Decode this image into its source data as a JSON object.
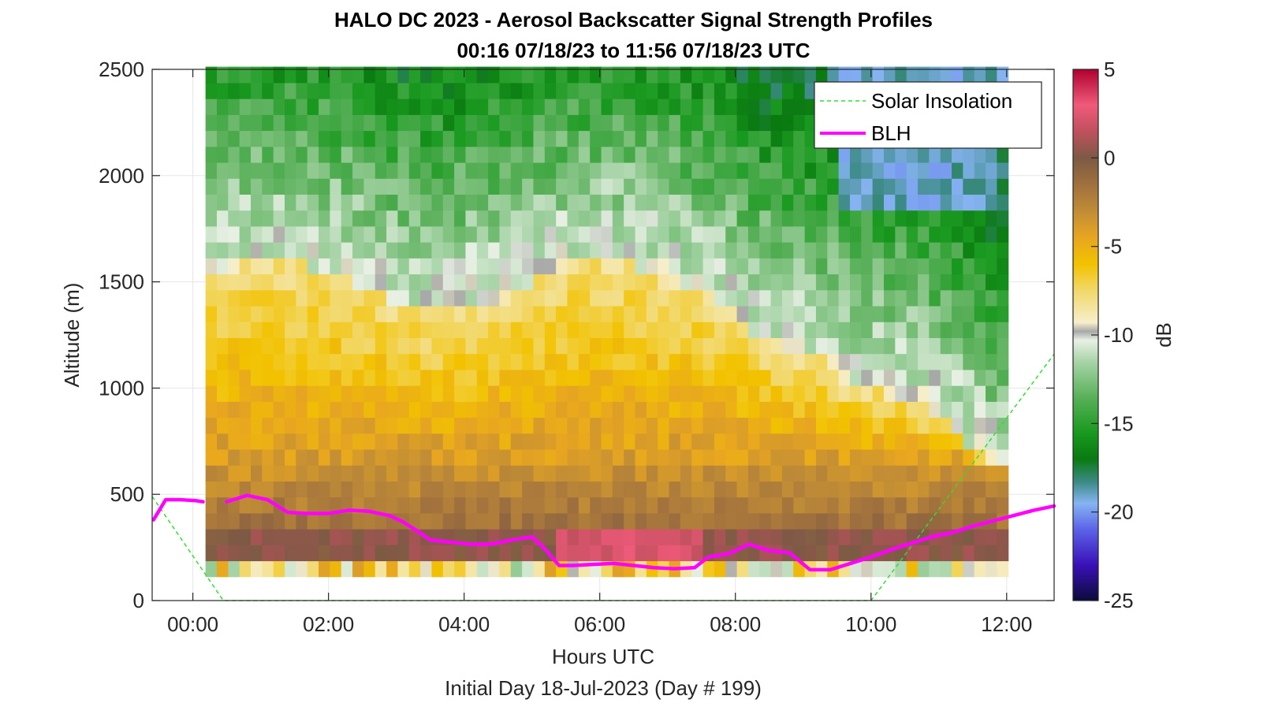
{
  "chart_data": {
    "type": "heatmap",
    "title": "HALO DC 2023 - Aerosol Backscatter Signal Strength Profiles",
    "subtitle": "00:16 07/18/23 to 11:56 07/18/23  UTC",
    "xlabel": "Hours UTC",
    "xlabel2": "Initial Day 18-Jul-2023 (Day # 199)",
    "ylabel": "Altitude (m)",
    "colorbar_label": "dB",
    "xlim": [
      -0.6,
      12.7
    ],
    "ylim": [
      0,
      2500
    ],
    "clim": [
      -25,
      5
    ],
    "grid": true,
    "legend_position": "top-right",
    "x_ticks": [
      0,
      2,
      4,
      6,
      8,
      10,
      12
    ],
    "x_tick_labels": [
      "00:00",
      "02:00",
      "04:00",
      "06:00",
      "08:00",
      "10:00",
      "12:00"
    ],
    "y_ticks": [
      0,
      500,
      1000,
      1500,
      2000,
      2500
    ],
    "y_tick_labels": [
      "0",
      "500",
      "1000",
      "1500",
      "2000",
      "2500"
    ],
    "colorbar_ticks": [
      5,
      0,
      -5,
      -10,
      -15,
      -20,
      -25
    ],
    "colorbar_tick_labels": [
      "5",
      "0",
      "-5",
      "-10",
      "-15",
      "-20",
      "-25"
    ],
    "colormap": [
      {
        "value": -25,
        "color": "#0b0b3a"
      },
      {
        "value": -23,
        "color": "#3a10b8"
      },
      {
        "value": -21,
        "color": "#5a62e8"
      },
      {
        "value": -19.5,
        "color": "#86b4f2"
      },
      {
        "value": -18.3,
        "color": "#3c8a86"
      },
      {
        "value": -17,
        "color": "#0a7a10"
      },
      {
        "value": -15.5,
        "color": "#1a9a20"
      },
      {
        "value": -13.5,
        "color": "#5ab05a"
      },
      {
        "value": -11.5,
        "color": "#a8d4a8"
      },
      {
        "value": -10.3,
        "color": "#e8f0e4"
      },
      {
        "value": -9.8,
        "color": "#a8a8a8"
      },
      {
        "value": -9.3,
        "color": "#f6eecc"
      },
      {
        "value": -7.5,
        "color": "#f2d86a"
      },
      {
        "value": -6,
        "color": "#f2c200"
      },
      {
        "value": -4.5,
        "color": "#e8a620"
      },
      {
        "value": -3,
        "color": "#c08c36"
      },
      {
        "value": -1.5,
        "color": "#a0703e"
      },
      {
        "value": 0,
        "color": "#7c5a44"
      },
      {
        "value": 1.5,
        "color": "#c0505e"
      },
      {
        "value": 3,
        "color": "#f05a7a"
      },
      {
        "value": 5,
        "color": "#b00030"
      }
    ],
    "heatmap": {
      "x_start": 0.27,
      "x_step": 0.1667,
      "altitudes": [
        150,
        225,
        300,
        375,
        450,
        525,
        600,
        675,
        750,
        825,
        900,
        975,
        1050,
        1125,
        1200,
        1275,
        1350,
        1425,
        1500,
        1575,
        1650,
        1725,
        1800,
        1875,
        1950,
        2025,
        2100,
        2175,
        2250,
        2325,
        2400,
        2475
      ],
      "profile_count": 71
    },
    "series": [
      {
        "name": "Solar Insolation",
        "color": "#33dd33",
        "style": "dashed",
        "x": [
          -0.6,
          0.45,
          10.0,
          12.7
        ],
        "y": [
          490,
          0,
          0,
          1160
        ]
      },
      {
        "name": "BLH",
        "color": "#ff00ff",
        "style": "solid",
        "segments": [
          {
            "x": [
              -0.58,
              -0.4,
              -0.2,
              0.05,
              0.15
            ],
            "y": [
              380,
              475,
              475,
              470,
              465
            ]
          },
          {
            "x": [
              0.5,
              0.8,
              1.1,
              1.4,
              1.7,
              2.0,
              2.3,
              2.6,
              2.9,
              3.1,
              3.3,
              3.5,
              3.8,
              4.1,
              4.4,
              4.7,
              5.0,
              5.2,
              5.4,
              5.6,
              5.9,
              6.2,
              6.5,
              6.8,
              7.1,
              7.4,
              7.6,
              7.9,
              8.2,
              8.5,
              8.8,
              9.1,
              9.4,
              9.7,
              10.0,
              10.3,
              10.6,
              10.9,
              11.2,
              11.5,
              11.8,
              12.1,
              12.4,
              12.7
            ],
            "y": [
              465,
              495,
              475,
              415,
              410,
              410,
              425,
              420,
              400,
              370,
              330,
              285,
              275,
              265,
              265,
              285,
              300,
              240,
              165,
              165,
              170,
              175,
              165,
              155,
              150,
              155,
              205,
              220,
              265,
              235,
              225,
              145,
              145,
              175,
              205,
              240,
              270,
              300,
              320,
              350,
              375,
              400,
              425,
              445
            ]
          }
        ]
      }
    ]
  }
}
